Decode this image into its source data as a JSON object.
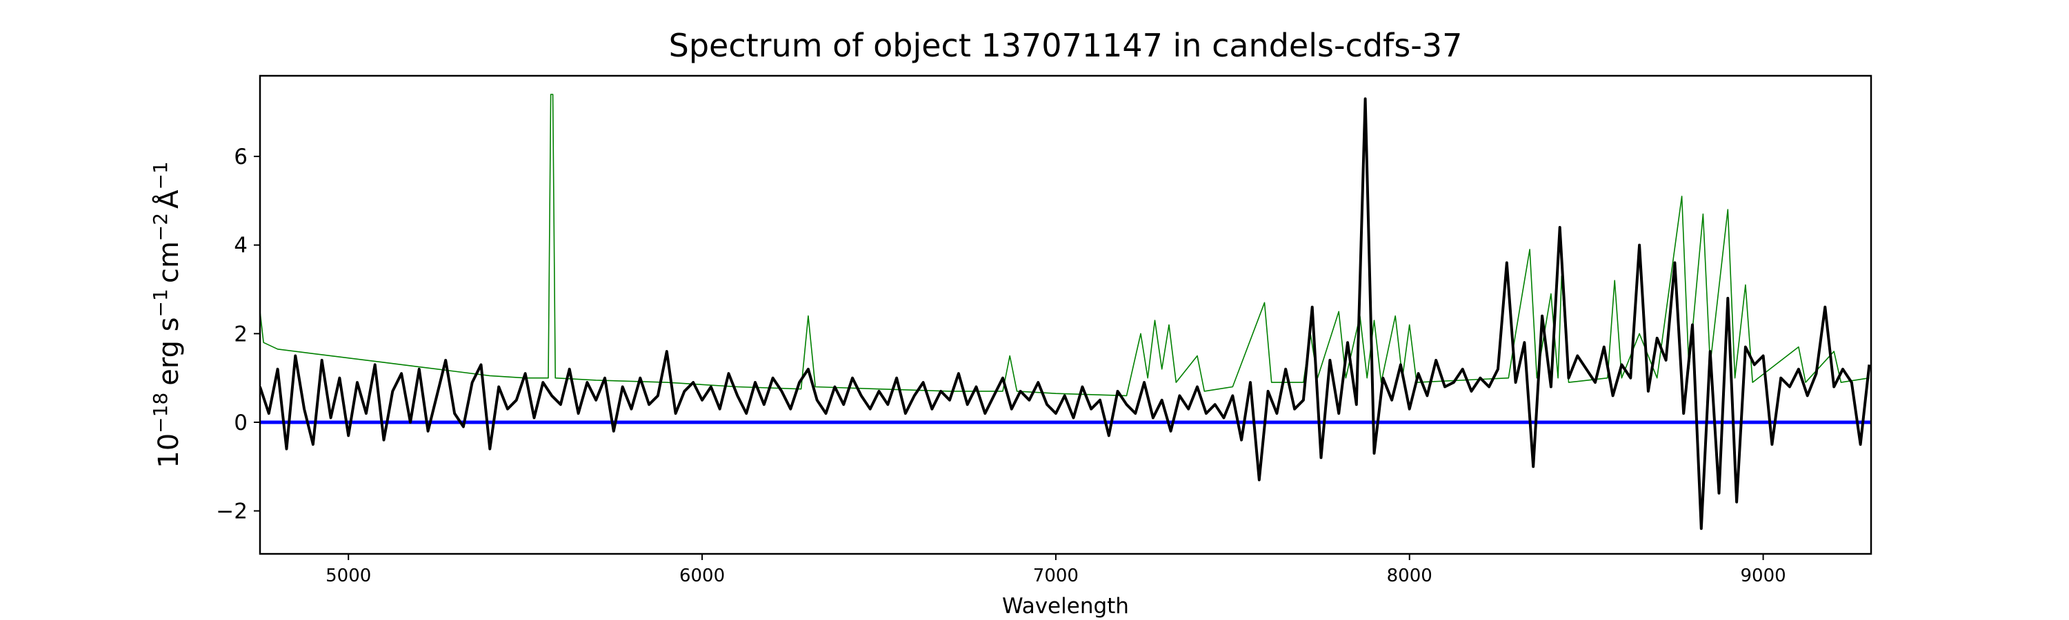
{
  "chart_data": {
    "type": "line",
    "title": "Spectrum of object 137071147 in candels-cdfs-37",
    "xlabel": "Wavelength",
    "ylabel": "10^{-18} erg s^{-1} cm^{-2} Å^{-1}",
    "ylabel_parts": {
      "base": "10",
      "exp": "−18",
      "erg": "erg s",
      "s_exp": "−1",
      "cm": "cm",
      "cm_exp": "−2",
      "ang": "Å",
      "ang_exp": "−1"
    },
    "xlim": [
      4750,
      9305
    ],
    "ylim": [
      -2.97,
      7.82
    ],
    "xticks": [
      "5000",
      "6000",
      "7000",
      "8000",
      "9000"
    ],
    "yticks": [
      "−2",
      "0",
      "2",
      "4",
      "6"
    ],
    "grid": false,
    "series": [
      {
        "color": "#000000",
        "x": [
          4750,
          4775,
          4800,
          4825,
          4850,
          4875,
          4900,
          4925,
          4950,
          4975,
          5000,
          5025,
          5050,
          5075,
          5100,
          5125,
          5150,
          5175,
          5200,
          5225,
          5250,
          5275,
          5300,
          5325,
          5350,
          5375,
          5400,
          5425,
          5450,
          5475,
          5500,
          5525,
          5550,
          5575,
          5600,
          5625,
          5650,
          5675,
          5700,
          5725,
          5750,
          5775,
          5800,
          5825,
          5850,
          5875,
          5900,
          5925,
          5950,
          5975,
          6000,
          6025,
          6050,
          6075,
          6100,
          6125,
          6150,
          6175,
          6200,
          6225,
          6250,
          6275,
          6300,
          6325,
          6350,
          6375,
          6400,
          6425,
          6450,
          6475,
          6500,
          6525,
          6550,
          6575,
          6600,
          6625,
          6650,
          6675,
          6700,
          6725,
          6750,
          6775,
          6800,
          6825,
          6850,
          6875,
          6900,
          6925,
          6950,
          6975,
          7000,
          7025,
          7050,
          7075,
          7100,
          7125,
          7150,
          7175,
          7200,
          7225,
          7250,
          7275,
          7300,
          7325,
          7350,
          7375,
          7400,
          7425,
          7450,
          7475,
          7500,
          7525,
          7550,
          7575,
          7600,
          7625,
          7650,
          7675,
          7700,
          7725,
          7750,
          7775,
          7800,
          7825,
          7850,
          7875,
          7900,
          7925,
          7950,
          7975,
          8000,
          8025,
          8050,
          8075,
          8100,
          8125,
          8150,
          8175,
          8200,
          8225,
          8250,
          8275,
          8300,
          8325,
          8350,
          8375,
          8400,
          8425,
          8450,
          8475,
          8500,
          8525,
          8550,
          8575,
          8600,
          8625,
          8650,
          8675,
          8700,
          8725,
          8750,
          8775,
          8800,
          8825,
          8850,
          8875,
          8900,
          8925,
          8950,
          8975,
          9000,
          9025,
          9050,
          9075,
          9100,
          9125,
          9150,
          9175,
          9200,
          9225,
          9250,
          9275,
          9300
        ],
        "y": [
          0.8,
          0.2,
          1.2,
          -0.6,
          1.5,
          0.3,
          -0.5,
          1.4,
          0.1,
          1.0,
          -0.3,
          0.9,
          0.2,
          1.3,
          -0.4,
          0.7,
          1.1,
          0.0,
          1.2,
          -0.2,
          0.6,
          1.4,
          0.2,
          -0.1,
          0.9,
          1.3,
          -0.6,
          0.8,
          0.3,
          0.5,
          1.1,
          0.1,
          0.9,
          0.6,
          0.4,
          1.2,
          0.2,
          0.9,
          0.5,
          1.0,
          -0.2,
          0.8,
          0.3,
          1.0,
          0.4,
          0.6,
          1.6,
          0.2,
          0.7,
          0.9,
          0.5,
          0.8,
          0.3,
          1.1,
          0.6,
          0.2,
          0.9,
          0.4,
          1.0,
          0.7,
          0.3,
          0.9,
          1.2,
          0.5,
          0.2,
          0.8,
          0.4,
          1.0,
          0.6,
          0.3,
          0.7,
          0.4,
          1.0,
          0.2,
          0.6,
          0.9,
          0.3,
          0.7,
          0.5,
          1.1,
          0.4,
          0.8,
          0.2,
          0.6,
          1.0,
          0.3,
          0.7,
          0.5,
          0.9,
          0.4,
          0.2,
          0.6,
          0.1,
          0.8,
          0.3,
          0.5,
          -0.3,
          0.7,
          0.4,
          0.2,
          0.9,
          0.1,
          0.5,
          -0.2,
          0.6,
          0.3,
          0.8,
          0.2,
          0.4,
          0.1,
          0.6,
          -0.4,
          0.9,
          -1.3,
          0.7,
          0.2,
          1.2,
          0.3,
          0.5,
          2.6,
          -0.8,
          1.4,
          0.2,
          1.8,
          0.4,
          7.3,
          -0.7,
          1.0,
          0.5,
          1.3,
          0.3,
          1.1,
          0.6,
          1.4,
          0.8,
          0.9,
          1.2,
          0.7,
          1.0,
          0.8,
          1.2,
          3.6,
          0.9,
          1.8,
          -1.0,
          2.4,
          0.8,
          4.4,
          1.0,
          1.5,
          1.2,
          0.9,
          1.7,
          0.6,
          1.3,
          1.0,
          4.0,
          0.7,
          1.9,
          1.4,
          3.6,
          0.2,
          2.2,
          -2.4,
          1.6,
          -1.6,
          2.8,
          -1.8,
          1.7,
          1.3,
          1.5,
          -0.5,
          1.0,
          0.8,
          1.2,
          0.6,
          1.1,
          2.6,
          0.8,
          1.2,
          0.9,
          -0.5,
          1.3
        ]
      },
      {
        "color": "#008000",
        "x": [
          4750,
          4760,
          4800,
          4900,
          5000,
          5100,
          5200,
          5300,
          5400,
          5500,
          5565,
          5572,
          5578,
          5585,
          5700,
          5900,
          6100,
          6280,
          6300,
          6320,
          6500,
          6700,
          6850,
          6870,
          6890,
          7000,
          7200,
          7240,
          7260,
          7280,
          7300,
          7320,
          7340,
          7400,
          7420,
          7500,
          7590,
          7610,
          7700,
          7720,
          7740,
          7800,
          7820,
          7860,
          7880,
          7900,
          7920,
          7960,
          7980,
          8000,
          8020,
          8280,
          8300,
          8340,
          8360,
          8400,
          8420,
          8430,
          8450,
          8560,
          8580,
          8600,
          8650,
          8700,
          8770,
          8790,
          8830,
          8850,
          8900,
          8920,
          8950,
          8970,
          9100,
          9120,
          9200,
          9220,
          9300
        ],
        "y": [
          2.5,
          1.8,
          1.65,
          1.55,
          1.45,
          1.35,
          1.25,
          1.15,
          1.05,
          1.0,
          1.0,
          7.4,
          7.4,
          1.0,
          0.95,
          0.9,
          0.8,
          0.75,
          2.4,
          0.8,
          0.75,
          0.7,
          0.7,
          1.5,
          0.7,
          0.65,
          0.6,
          2.0,
          1.0,
          2.3,
          1.2,
          2.2,
          0.9,
          1.5,
          0.7,
          0.8,
          2.7,
          0.9,
          0.9,
          2.0,
          1.0,
          2.5,
          1.0,
          2.4,
          1.0,
          2.3,
          0.9,
          2.4,
          1.0,
          2.2,
          0.9,
          1.0,
          2.0,
          3.9,
          1.0,
          2.9,
          1.0,
          3.3,
          0.9,
          1.0,
          3.2,
          1.0,
          2.0,
          1.0,
          5.1,
          1.2,
          4.7,
          1.3,
          4.8,
          1.0,
          3.1,
          0.9,
          1.7,
          0.9,
          1.6,
          0.9,
          1.0
        ]
      },
      {
        "color": "#0000ff",
        "x": [
          4750,
          9305
        ],
        "y": [
          0,
          0
        ]
      }
    ]
  }
}
